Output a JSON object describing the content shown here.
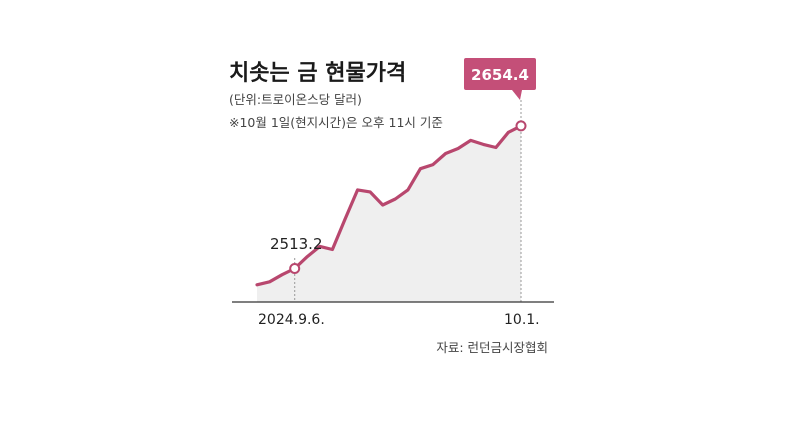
{
  "chart_data": {
    "type": "area",
    "title": "치솟는 금 현물가격",
    "subtitle_unit": "(단위:트로이온스당 달러)",
    "note": "※10월 1일(현지시간)은 오후 11시 기준",
    "source": "자료: 런던금시장협회",
    "x_tick_labels": [
      "2024.9.6.",
      "10.1."
    ],
    "start_label": "2513.2",
    "end_label": "2654.4",
    "ylim": [
      2480,
      2680
    ],
    "values": [
      2497,
      2500,
      2507,
      2513.2,
      2525,
      2535,
      2532,
      2562,
      2591,
      2589,
      2576,
      2582,
      2591,
      2612,
      2616,
      2627,
      2632,
      2640,
      2636,
      2633,
      2648,
      2654.4
    ],
    "highlight_indices": [
      3,
      21
    ],
    "colors": {
      "line": "#b8476e",
      "fill": "#efefef",
      "callout": "#c44f78",
      "axis": "#333333",
      "guide": "#999999"
    }
  }
}
